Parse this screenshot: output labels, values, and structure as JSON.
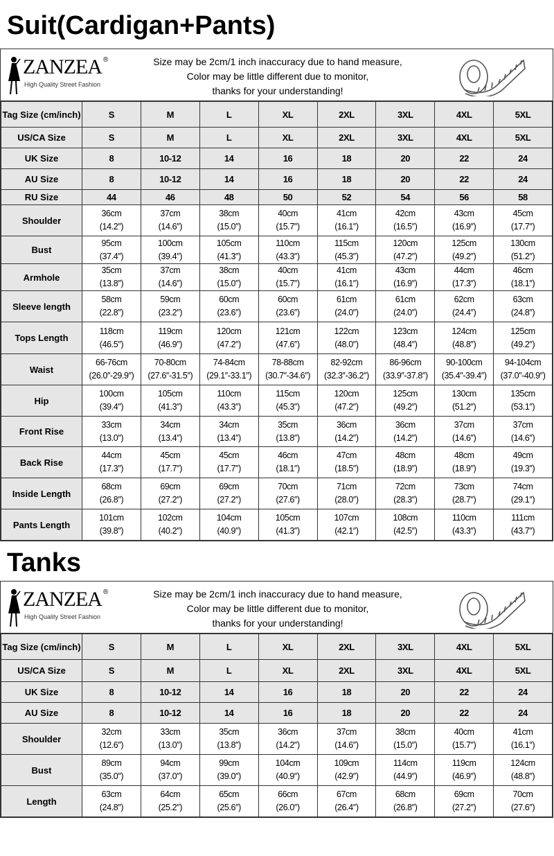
{
  "sizes": [
    "S",
    "M",
    "L",
    "XL",
    "2XL",
    "3XL",
    "4XL",
    "5XL"
  ],
  "header": {
    "brand": "ZANZEA",
    "registered": "®",
    "tagline": "High Quality Street Fashion",
    "notes": [
      "Size may be 2cm/1 inch inaccuracy due to hand measure,",
      "Color may be little different due to monitor,",
      "thanks for your understanding!"
    ],
    "icon": "tape-measure-icon"
  },
  "charts": [
    {
      "title": "Suit(Cardigan+Pants)",
      "size_rows": [
        {
          "label": "Tag Size (cm/inch)",
          "values": [
            "S",
            "M",
            "L",
            "XL",
            "2XL",
            "3XL",
            "4XL",
            "5XL"
          ]
        },
        {
          "label": "US/CA Size",
          "values": [
            "S",
            "M",
            "L",
            "XL",
            "2XL",
            "3XL",
            "4XL",
            "5XL"
          ]
        },
        {
          "label": "UK Size",
          "values": [
            "8",
            "10-12",
            "14",
            "16",
            "18",
            "20",
            "22",
            "24"
          ]
        },
        {
          "label": "AU Size",
          "values": [
            "8",
            "10-12",
            "14",
            "16",
            "18",
            "20",
            "22",
            "24"
          ]
        },
        {
          "label": "RU Size",
          "values": [
            "44",
            "46",
            "48",
            "50",
            "52",
            "54",
            "56",
            "58"
          ]
        }
      ],
      "measure_rows": [
        {
          "label": "Shoulder",
          "values": [
            [
              "36cm",
              "(14.2″)"
            ],
            [
              "37cm",
              "(14.6″)"
            ],
            [
              "38cm",
              "(15.0″)"
            ],
            [
              "40cm",
              "(15.7″)"
            ],
            [
              "41cm",
              "(16.1″)"
            ],
            [
              "42cm",
              "(16.5″)"
            ],
            [
              "43cm",
              "(16.9″)"
            ],
            [
              "45cm",
              "(17.7″)"
            ]
          ]
        },
        {
          "label": "Bust",
          "values": [
            [
              "95cm",
              "(37.4″)"
            ],
            [
              "100cm",
              "(39.4″)"
            ],
            [
              "105cm",
              "(41.3″)"
            ],
            [
              "110cm",
              "(43.3″)"
            ],
            [
              "115cm",
              "(45.3″)"
            ],
            [
              "120cm",
              "(47.2″)"
            ],
            [
              "125cm",
              "(49.2″)"
            ],
            [
              "130cm",
              "(51.2″)"
            ]
          ]
        },
        {
          "label": "Armhole",
          "values": [
            [
              "35cm",
              "(13.8″)"
            ],
            [
              "37cm",
              "(14.6″)"
            ],
            [
              "38cm",
              "(15.0″)"
            ],
            [
              "40cm",
              "(15.7″)"
            ],
            [
              "41cm",
              "(16.1″)"
            ],
            [
              "43cm",
              "(16.9″)"
            ],
            [
              "44cm",
              "(17.3″)"
            ],
            [
              "46cm",
              "(18.1″)"
            ]
          ]
        },
        {
          "label": "Sleeve length",
          "values": [
            [
              "58cm",
              "(22.8″)"
            ],
            [
              "59cm",
              "(23.2″)"
            ],
            [
              "60cm",
              "(23.6″)"
            ],
            [
              "60cm",
              "(23.6″)"
            ],
            [
              "61cm",
              "(24.0″)"
            ],
            [
              "61cm",
              "(24.0″)"
            ],
            [
              "62cm",
              "(24.4″)"
            ],
            [
              "63cm",
              "(24.8″)"
            ]
          ]
        },
        {
          "label": "Tops Length",
          "values": [
            [
              "118cm",
              "(46.5″)"
            ],
            [
              "119cm",
              "(46.9″)"
            ],
            [
              "120cm",
              "(47.2″)"
            ],
            [
              "121cm",
              "(47.6″)"
            ],
            [
              "122cm",
              "(48.0″)"
            ],
            [
              "123cm",
              "(48.4″)"
            ],
            [
              "124cm",
              "(48.8″)"
            ],
            [
              "125cm",
              "(49.2″)"
            ]
          ]
        },
        {
          "label": "Waist",
          "values": [
            [
              "66-76cm",
              "(26.0″-29.9″)"
            ],
            [
              "70-80cm",
              "(27.6″-31.5″)"
            ],
            [
              "74-84cm",
              "(29.1″-33.1″)"
            ],
            [
              "78-88cm",
              "(30.7″-34.6″)"
            ],
            [
              "82-92cm",
              "(32.3″-36.2″)"
            ],
            [
              "86-96cm",
              "(33.9″-37.8″)"
            ],
            [
              "90-100cm",
              "(35.4″-39.4″)"
            ],
            [
              "94-104cm",
              "(37.0″-40.9″)"
            ]
          ]
        },
        {
          "label": "Hip",
          "values": [
            [
              "100cm",
              "(39.4″)"
            ],
            [
              "105cm",
              "(41.3″)"
            ],
            [
              "110cm",
              "(43.3″)"
            ],
            [
              "115cm",
              "(45.3″)"
            ],
            [
              "120cm",
              "(47.2″)"
            ],
            [
              "125cm",
              "(49.2″)"
            ],
            [
              "130cm",
              "(51.2″)"
            ],
            [
              "135cm",
              "(53.1″)"
            ]
          ]
        },
        {
          "label": "Front Rise",
          "values": [
            [
              "33cm",
              "(13.0″)"
            ],
            [
              "34cm",
              "(13.4″)"
            ],
            [
              "34cm",
              "(13.4″)"
            ],
            [
              "35cm",
              "(13.8″)"
            ],
            [
              "36cm",
              "(14.2″)"
            ],
            [
              "36cm",
              "(14.2″)"
            ],
            [
              "37cm",
              "(14.6″)"
            ],
            [
              "37cm",
              "(14.6″)"
            ]
          ]
        },
        {
          "label": "Back Rise",
          "values": [
            [
              "44cm",
              "(17.3″)"
            ],
            [
              "45cm",
              "(17.7″)"
            ],
            [
              "45cm",
              "(17.7″)"
            ],
            [
              "46cm",
              "(18.1″)"
            ],
            [
              "47cm",
              "(18.5″)"
            ],
            [
              "48cm",
              "(18.9″)"
            ],
            [
              "48cm",
              "(18.9″)"
            ],
            [
              "49cm",
              "(19.3″)"
            ]
          ]
        },
        {
          "label": "Inside Length",
          "values": [
            [
              "68cm",
              "(26.8″)"
            ],
            [
              "69cm",
              "(27.2″)"
            ],
            [
              "69cm",
              "(27.2″)"
            ],
            [
              "70cm",
              "(27.6″)"
            ],
            [
              "71cm",
              "(28.0″)"
            ],
            [
              "72cm",
              "(28.3″)"
            ],
            [
              "73cm",
              "(28.7″)"
            ],
            [
              "74cm",
              "(29.1″)"
            ]
          ]
        },
        {
          "label": "Pants Length",
          "values": [
            [
              "101cm",
              "(39.8″)"
            ],
            [
              "102cm",
              "(40.2″)"
            ],
            [
              "104cm",
              "(40.9″)"
            ],
            [
              "105cm",
              "(41.3″)"
            ],
            [
              "107cm",
              "(42.1″)"
            ],
            [
              "108cm",
              "(42.5″)"
            ],
            [
              "110cm",
              "(43.3″)"
            ],
            [
              "111cm",
              "(43.7″)"
            ]
          ]
        }
      ]
    },
    {
      "title": "Tanks",
      "size_rows": [
        {
          "label": "Tag Size (cm/inch)",
          "values": [
            "S",
            "M",
            "L",
            "XL",
            "2XL",
            "3XL",
            "4XL",
            "5XL"
          ]
        },
        {
          "label": "US/CA Size",
          "values": [
            "S",
            "M",
            "L",
            "XL",
            "2XL",
            "3XL",
            "4XL",
            "5XL"
          ]
        },
        {
          "label": "UK Size",
          "values": [
            "8",
            "10-12",
            "14",
            "16",
            "18",
            "20",
            "22",
            "24"
          ]
        },
        {
          "label": "AU Size",
          "values": [
            "8",
            "10-12",
            "14",
            "16",
            "18",
            "20",
            "22",
            "24"
          ]
        }
      ],
      "measure_rows": [
        {
          "label": "Shoulder",
          "values": [
            [
              "32cm",
              "(12.6″)"
            ],
            [
              "33cm",
              "(13.0″)"
            ],
            [
              "35cm",
              "(13.8″)"
            ],
            [
              "36cm",
              "(14.2″)"
            ],
            [
              "37cm",
              "(14.6″)"
            ],
            [
              "38cm",
              "(15.0″)"
            ],
            [
              "40cm",
              "(15.7″)"
            ],
            [
              "41cm",
              "(16.1″)"
            ]
          ]
        },
        {
          "label": "Bust",
          "values": [
            [
              "89cm",
              "(35.0″)"
            ],
            [
              "94cm",
              "(37.0″)"
            ],
            [
              "99cm",
              "(39.0″)"
            ],
            [
              "104cm",
              "(40.9″)"
            ],
            [
              "109cm",
              "(42.9″)"
            ],
            [
              "114cm",
              "(44.9″)"
            ],
            [
              "119cm",
              "(46.9″)"
            ],
            [
              "124cm",
              "(48.8″)"
            ]
          ]
        },
        {
          "label": "Length",
          "values": [
            [
              "63cm",
              "(24.8″)"
            ],
            [
              "64cm",
              "(25.2″)"
            ],
            [
              "65cm",
              "(25.6″)"
            ],
            [
              "66cm",
              "(26.0″)"
            ],
            [
              "67cm",
              "(26.4″)"
            ],
            [
              "68cm",
              "(26.8″)"
            ],
            [
              "69cm",
              "(27.2″)"
            ],
            [
              "70cm",
              "(27.6″)"
            ]
          ]
        }
      ]
    }
  ]
}
